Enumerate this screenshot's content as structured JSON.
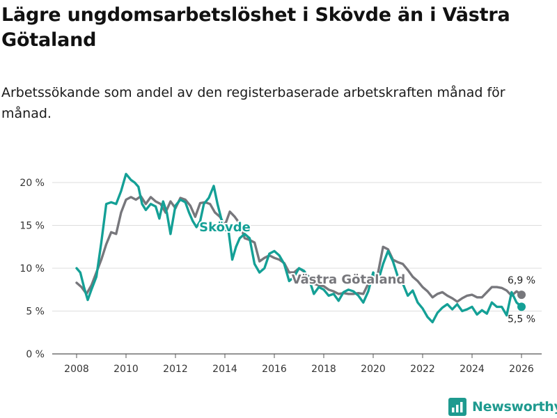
{
  "header": {
    "title": "Lägre ungdomsarbetslöshet i Skövde än i Västra Götaland",
    "subtitle": "Arbetssökande som andel av den registerbaserade arbetskraften månad för månad."
  },
  "brand": {
    "name": "Newsworthy",
    "icon": "newsworthy-logo-icon",
    "color": "#1e9a8f"
  },
  "chart_data": {
    "type": "line",
    "title": "Lägre ungdomsarbetslöshet i Skövde än i Västra Götaland",
    "subtitle": "Arbetssökande som andel av den registerbaserade arbetskraften månad för månad.",
    "xlabel": "",
    "ylabel": "",
    "xlim": [
      2007.5,
      2026.6
    ],
    "ylim": [
      0,
      20
    ],
    "grid": true,
    "x_ticks": [
      2008,
      2010,
      2012,
      2014,
      2016,
      2018,
      2020,
      2022,
      2024,
      2026
    ],
    "x_tick_labels": [
      "2008",
      "2010",
      "2012",
      "2014",
      "2016",
      "2018",
      "2020",
      "2022",
      "2024",
      "2026"
    ],
    "y_ticks": [
      0,
      5,
      10,
      15,
      20
    ],
    "y_tick_labels": [
      "0 %",
      "5 %",
      "10 %",
      "15 %",
      "20 %"
    ],
    "series": [
      {
        "name": "Västra Götaland",
        "color": "#77777c",
        "end_value": 6.9,
        "end_label": "6,9 %",
        "points": [
          [
            2008.0,
            8.3
          ],
          [
            2008.2,
            7.8
          ],
          [
            2008.4,
            7.0
          ],
          [
            2008.6,
            8.0
          ],
          [
            2008.8,
            9.5
          ],
          [
            2009.0,
            11.0
          ],
          [
            2009.2,
            12.8
          ],
          [
            2009.4,
            14.2
          ],
          [
            2009.6,
            14.0
          ],
          [
            2009.8,
            16.5
          ],
          [
            2010.0,
            18.0
          ],
          [
            2010.2,
            18.3
          ],
          [
            2010.4,
            18.0
          ],
          [
            2010.6,
            18.4
          ],
          [
            2010.8,
            17.5
          ],
          [
            2011.0,
            18.3
          ],
          [
            2011.2,
            17.8
          ],
          [
            2011.4,
            17.5
          ],
          [
            2011.6,
            16.5
          ],
          [
            2011.8,
            17.8
          ],
          [
            2012.0,
            17.0
          ],
          [
            2012.2,
            18.2
          ],
          [
            2012.4,
            18.0
          ],
          [
            2012.6,
            17.3
          ],
          [
            2012.8,
            16.0
          ],
          [
            2013.0,
            17.6
          ],
          [
            2013.2,
            17.7
          ],
          [
            2013.4,
            17.5
          ],
          [
            2013.6,
            16.5
          ],
          [
            2013.8,
            16.0
          ],
          [
            2014.0,
            15.0
          ],
          [
            2014.2,
            16.6
          ],
          [
            2014.4,
            16.0
          ],
          [
            2014.6,
            15.2
          ],
          [
            2014.8,
            13.5
          ],
          [
            2015.0,
            13.3
          ],
          [
            2015.2,
            13.0
          ],
          [
            2015.4,
            10.8
          ],
          [
            2015.6,
            11.2
          ],
          [
            2015.8,
            11.5
          ],
          [
            2016.0,
            11.2
          ],
          [
            2016.2,
            11.0
          ],
          [
            2016.4,
            10.6
          ],
          [
            2016.6,
            9.5
          ],
          [
            2016.8,
            9.5
          ],
          [
            2017.0,
            10.0
          ],
          [
            2017.2,
            9.6
          ],
          [
            2017.4,
            9.0
          ],
          [
            2017.6,
            8.2
          ],
          [
            2017.8,
            8.0
          ],
          [
            2018.0,
            7.9
          ],
          [
            2018.2,
            7.5
          ],
          [
            2018.4,
            7.3
          ],
          [
            2018.6,
            7.0
          ],
          [
            2018.8,
            7.1
          ],
          [
            2019.0,
            7.0
          ],
          [
            2019.2,
            7.0
          ],
          [
            2019.4,
            7.1
          ],
          [
            2019.6,
            7.0
          ],
          [
            2019.8,
            8.2
          ],
          [
            2020.0,
            8.5
          ],
          [
            2020.2,
            9.5
          ],
          [
            2020.4,
            12.5
          ],
          [
            2020.6,
            12.2
          ],
          [
            2020.8,
            11.0
          ],
          [
            2021.0,
            10.7
          ],
          [
            2021.2,
            10.5
          ],
          [
            2021.4,
            9.8
          ],
          [
            2021.6,
            9.0
          ],
          [
            2021.8,
            8.5
          ],
          [
            2022.0,
            7.8
          ],
          [
            2022.2,
            7.3
          ],
          [
            2022.4,
            6.6
          ],
          [
            2022.6,
            7.0
          ],
          [
            2022.8,
            7.2
          ],
          [
            2023.0,
            6.8
          ],
          [
            2023.2,
            6.5
          ],
          [
            2023.4,
            6.1
          ],
          [
            2023.6,
            6.5
          ],
          [
            2023.8,
            6.8
          ],
          [
            2024.0,
            6.9
          ],
          [
            2024.2,
            6.6
          ],
          [
            2024.4,
            6.6
          ],
          [
            2024.6,
            7.2
          ],
          [
            2024.8,
            7.8
          ],
          [
            2025.0,
            7.8
          ],
          [
            2025.2,
            7.7
          ],
          [
            2025.4,
            7.4
          ],
          [
            2025.6,
            6.8
          ],
          [
            2025.8,
            7.3
          ],
          [
            2026.0,
            6.9
          ]
        ]
      },
      {
        "name": "Skövde",
        "color": "#14a096",
        "end_value": 5.5,
        "end_label": "5,5 %",
        "points": [
          [
            2008.0,
            10.0
          ],
          [
            2008.15,
            9.5
          ],
          [
            2008.3,
            7.8
          ],
          [
            2008.45,
            6.3
          ],
          [
            2008.6,
            7.5
          ],
          [
            2008.8,
            9.0
          ],
          [
            2009.0,
            13.0
          ],
          [
            2009.2,
            17.5
          ],
          [
            2009.4,
            17.7
          ],
          [
            2009.6,
            17.5
          ],
          [
            2009.8,
            19.0
          ],
          [
            2010.0,
            21.0
          ],
          [
            2010.2,
            20.3
          ],
          [
            2010.35,
            20.0
          ],
          [
            2010.5,
            19.5
          ],
          [
            2010.65,
            17.5
          ],
          [
            2010.8,
            16.8
          ],
          [
            2011.0,
            17.5
          ],
          [
            2011.2,
            17.2
          ],
          [
            2011.35,
            15.8
          ],
          [
            2011.5,
            17.8
          ],
          [
            2011.65,
            16.5
          ],
          [
            2011.8,
            14.0
          ],
          [
            2012.0,
            17.3
          ],
          [
            2012.2,
            18.0
          ],
          [
            2012.4,
            17.7
          ],
          [
            2012.55,
            16.5
          ],
          [
            2012.7,
            15.5
          ],
          [
            2012.85,
            14.8
          ],
          [
            2013.0,
            15.5
          ],
          [
            2013.15,
            17.5
          ],
          [
            2013.35,
            18.2
          ],
          [
            2013.55,
            19.6
          ],
          [
            2013.7,
            17.5
          ],
          [
            2013.85,
            15.8
          ],
          [
            2014.0,
            14.5
          ],
          [
            2014.15,
            14.3
          ],
          [
            2014.3,
            11.0
          ],
          [
            2014.45,
            12.5
          ],
          [
            2014.6,
            13.5
          ],
          [
            2014.8,
            14.0
          ],
          [
            2015.0,
            13.5
          ],
          [
            2015.2,
            10.5
          ],
          [
            2015.4,
            9.5
          ],
          [
            2015.6,
            10.0
          ],
          [
            2015.8,
            11.7
          ],
          [
            2016.0,
            12.0
          ],
          [
            2016.2,
            11.5
          ],
          [
            2016.4,
            10.5
          ],
          [
            2016.6,
            8.5
          ],
          [
            2016.8,
            9.0
          ],
          [
            2017.0,
            10.0
          ],
          [
            2017.2,
            9.7
          ],
          [
            2017.4,
            8.8
          ],
          [
            2017.6,
            7.0
          ],
          [
            2017.8,
            7.8
          ],
          [
            2018.0,
            7.5
          ],
          [
            2018.2,
            6.8
          ],
          [
            2018.4,
            7.0
          ],
          [
            2018.6,
            6.2
          ],
          [
            2018.8,
            7.2
          ],
          [
            2019.0,
            7.5
          ],
          [
            2019.2,
            7.3
          ],
          [
            2019.4,
            6.8
          ],
          [
            2019.6,
            6.0
          ],
          [
            2019.8,
            7.3
          ],
          [
            2020.0,
            9.5
          ],
          [
            2020.2,
            8.5
          ],
          [
            2020.4,
            10.5
          ],
          [
            2020.6,
            12.0
          ],
          [
            2020.8,
            10.8
          ],
          [
            2021.0,
            9.0
          ],
          [
            2021.2,
            8.2
          ],
          [
            2021.4,
            6.8
          ],
          [
            2021.6,
            7.4
          ],
          [
            2021.8,
            6.0
          ],
          [
            2022.0,
            5.3
          ],
          [
            2022.2,
            4.3
          ],
          [
            2022.4,
            3.7
          ],
          [
            2022.6,
            4.8
          ],
          [
            2022.8,
            5.4
          ],
          [
            2023.0,
            5.8
          ],
          [
            2023.2,
            5.2
          ],
          [
            2023.4,
            5.8
          ],
          [
            2023.6,
            5.0
          ],
          [
            2023.8,
            5.2
          ],
          [
            2024.0,
            5.5
          ],
          [
            2024.2,
            4.6
          ],
          [
            2024.4,
            5.1
          ],
          [
            2024.6,
            4.7
          ],
          [
            2024.8,
            6.0
          ],
          [
            2025.0,
            5.5
          ],
          [
            2025.2,
            5.5
          ],
          [
            2025.4,
            4.5
          ],
          [
            2025.6,
            7.2
          ],
          [
            2025.8,
            6.0
          ],
          [
            2026.0,
            5.5
          ]
        ]
      }
    ],
    "annotations": [
      {
        "series": "Skövde",
        "text": "Skövde",
        "x": 2014.0,
        "y": 14.3
      },
      {
        "series": "Västra Götaland",
        "text": "Västra Götaland",
        "x": 2019.0,
        "y": 8.2
      }
    ]
  }
}
